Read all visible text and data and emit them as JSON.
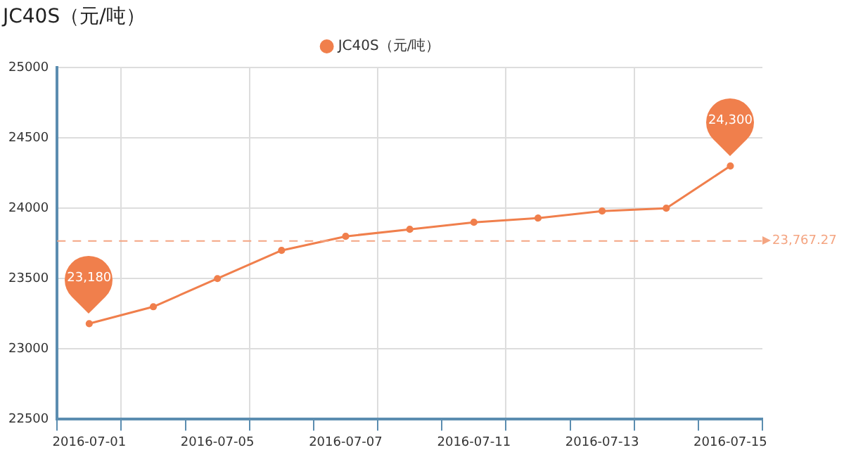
{
  "chart_data": {
    "type": "line",
    "title": "JC40S（元/吨）",
    "categories": [
      "2016-07-01",
      null,
      "2016-07-05",
      null,
      "2016-07-07",
      null,
      "2016-07-11",
      null,
      "2016-07-13",
      null,
      "2016-07-15"
    ],
    "series": [
      {
        "name": "JC40S（元/吨）",
        "color": "#f07f4c",
        "values": [
          23180,
          23300,
          23500,
          23700,
          23800,
          23850,
          23900,
          23930,
          23980,
          24000,
          24300
        ]
      }
    ],
    "ylim": [
      22500,
      25000
    ],
    "yticks": [
      22500,
      23000,
      23500,
      24000,
      24500,
      25000
    ],
    "ref_lines": [
      {
        "axis": "y",
        "value": 23767.27,
        "label": "23,767.27",
        "color": "#f4a582",
        "line_style": "dashed"
      }
    ],
    "annotations": [
      {
        "text": "23,180",
        "x": "2016-07-01",
        "y": 23180
      },
      {
        "text": "24,300",
        "x": "2016-07-15",
        "y": 24300
      }
    ],
    "grid": true,
    "legend": "top",
    "marker": "circle",
    "line_style": "solid"
  }
}
